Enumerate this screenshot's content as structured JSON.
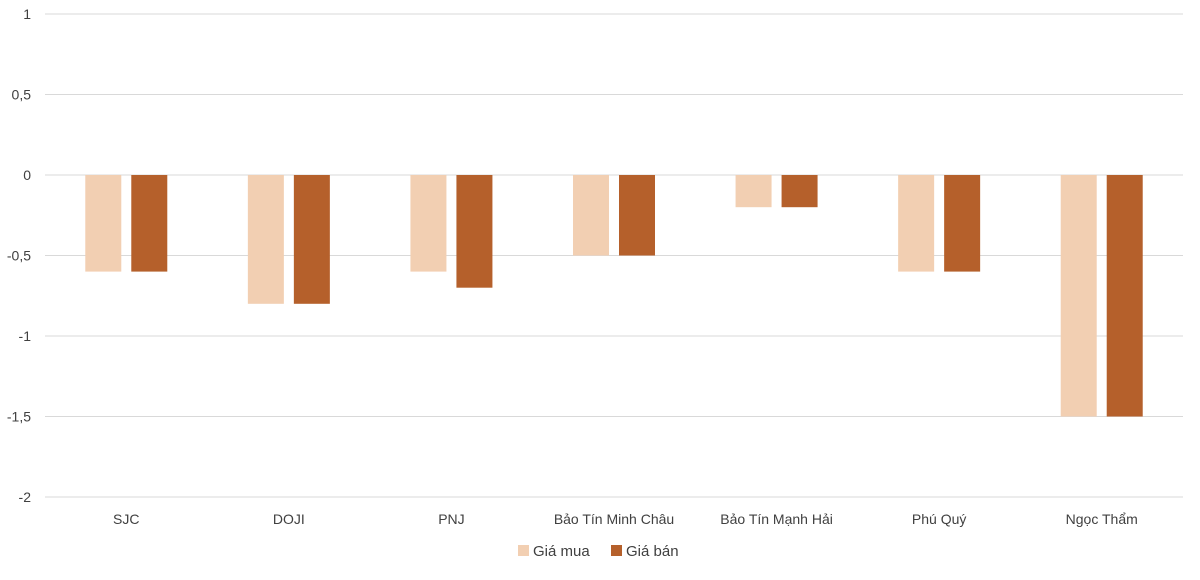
{
  "chart_data": {
    "type": "bar",
    "categories": [
      "SJC",
      "DOJI",
      "PNJ",
      "Bảo Tín Minh Châu",
      "Bảo Tín Mạnh Hải",
      "Phú Quý",
      "Ngọc Thẩm"
    ],
    "series": [
      {
        "name": "Giá mua",
        "color": "#f2cfb2",
        "values": [
          -0.6,
          -0.8,
          -0.6,
          -0.5,
          -0.2,
          -0.6,
          -1.5
        ]
      },
      {
        "name": "Giá bán",
        "color": "#b5602b",
        "values": [
          -0.6,
          -0.8,
          -0.7,
          -0.5,
          -0.2,
          -0.6,
          -1.5
        ]
      }
    ],
    "ylim": [
      -2,
      1
    ],
    "yticks": [
      1,
      0.5,
      0,
      -0.5,
      -1,
      -1.5,
      -2
    ],
    "ytick_labels": [
      "1",
      "0,5",
      "0",
      "-0,5",
      "-1",
      "-1,5",
      "-2"
    ],
    "grid": true,
    "legend_position": "bottom",
    "title": "",
    "xlabel": "",
    "ylabel": ""
  }
}
